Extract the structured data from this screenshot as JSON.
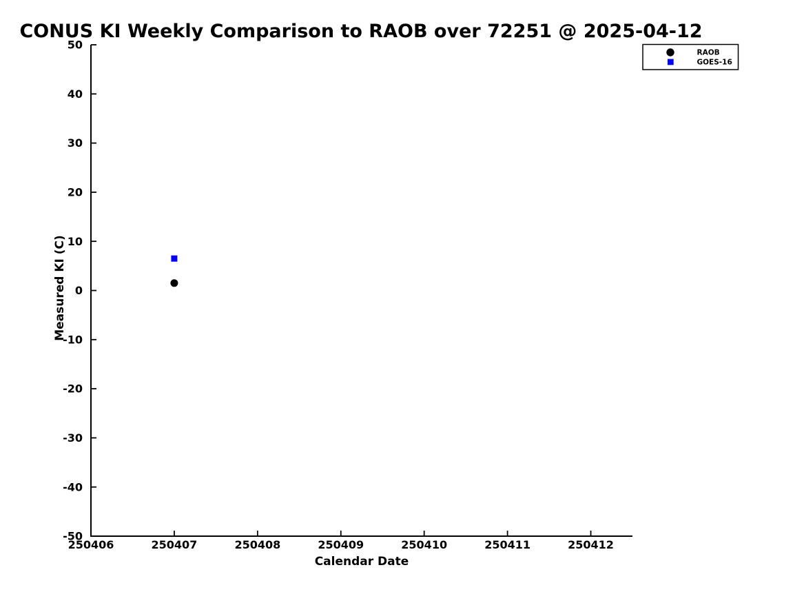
{
  "chart_data": {
    "type": "scatter",
    "title": "CONUS KI Weekly Comparison to RAOB over 72251 @ 2025-04-12",
    "xlabel": "Calendar Date",
    "ylabel": "Measured KI (C)",
    "x_tick_labels": [
      "250406",
      "250407",
      "250408",
      "250409",
      "250410",
      "250411",
      "250412"
    ],
    "xlim_days": [
      0,
      6.5
    ],
    "ylim": [
      -50,
      50
    ],
    "y_ticks": [
      50,
      40,
      30,
      20,
      10,
      0,
      -10,
      -20,
      -30,
      -40,
      -50
    ],
    "grid": false,
    "legend_position": "upper-right",
    "series": [
      {
        "name": "RAOB",
        "marker": "circle",
        "color": "#000000",
        "points": [
          {
            "x": "250407",
            "x_day": 1,
            "y": 1.5
          }
        ]
      },
      {
        "name": "GOES-16",
        "marker": "square",
        "color": "#0000ff",
        "points": [
          {
            "x": "250407",
            "x_day": 1,
            "y": 6.5
          }
        ]
      }
    ]
  }
}
